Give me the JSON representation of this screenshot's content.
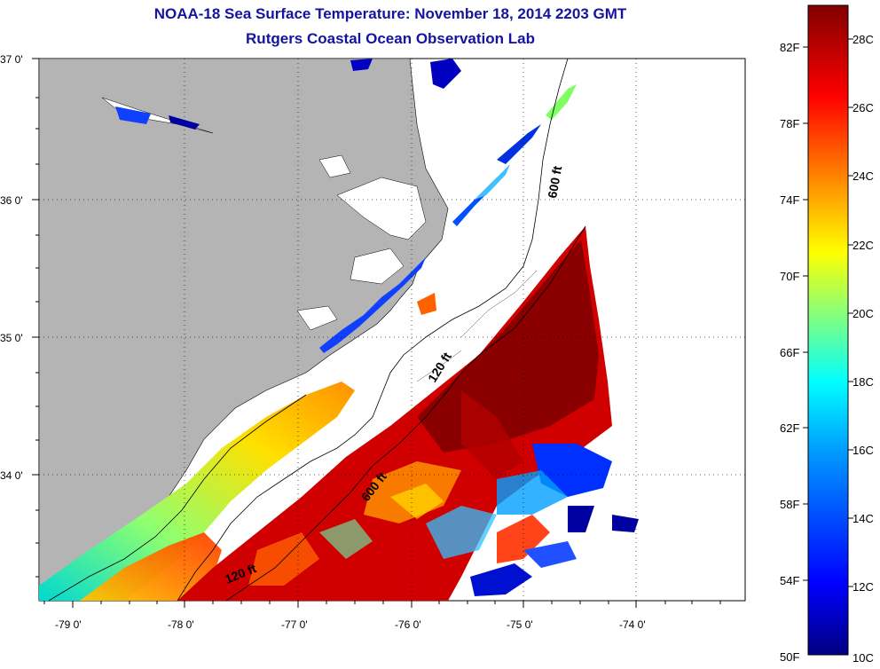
{
  "title_line1": "NOAA-18 Sea Surface Temperature:  November 18, 2014 2203 GMT",
  "title_line2": "Rutgers Coastal Ocean Observation Lab",
  "lat_labels": [
    "37 0'",
    "36 0'",
    "35 0'",
    "34 0'"
  ],
  "lon_labels": [
    "-79 0'",
    "-78 0'",
    "-77 0'",
    "-76 0'",
    "-75 0'",
    "-74 0'"
  ],
  "isobaths": [
    "600 ft",
    "120 ft",
    "600 ft",
    "120 ft"
  ],
  "colorbar": {
    "fahrenheit": [
      "82F",
      "78F",
      "74F",
      "70F",
      "66F",
      "62F",
      "58F",
      "54F",
      "50F"
    ],
    "celsius": [
      "28C",
      "26C",
      "24C",
      "22C",
      "20C",
      "18C",
      "16C",
      "14C",
      "12C",
      "10C"
    ],
    "colors": [
      "#000080",
      "#0000ff",
      "#0080ff",
      "#00ffff",
      "#80ff80",
      "#ffff00",
      "#ff8000",
      "#ff0000",
      "#800000"
    ]
  },
  "colors": {
    "land": "#b4b4b4",
    "title": "#1414a0",
    "warm": "#b30000",
    "deep_warm": "#8a0000"
  }
}
